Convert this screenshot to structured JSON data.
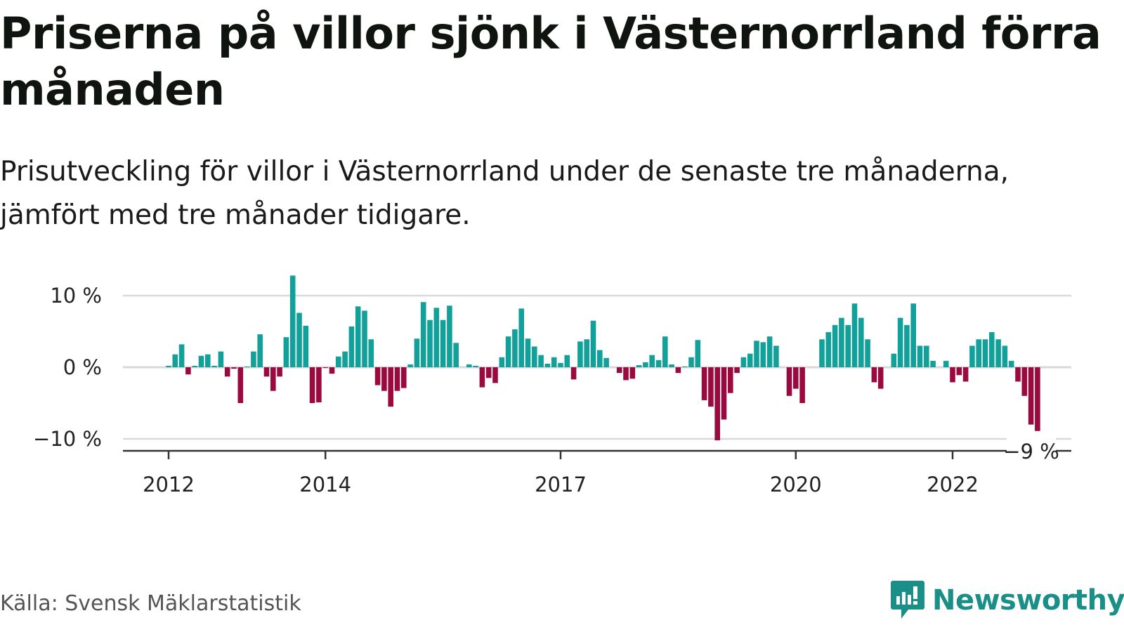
{
  "title": "Priserna på villor sjönk i Västernorrland förra månaden",
  "subtitle": "Prisutveckling för villor i Västernorrland under de senaste tre månaderna, jämfört med tre månader tidigare.",
  "source": "Källa: Svensk Mäklarstatistik",
  "brand": "Newsworthy",
  "colors": {
    "positive": "#12a19a",
    "negative": "#9b0a3f",
    "brand": "#1a8f87",
    "grid": "#d9d9d9",
    "axis": "#333333"
  },
  "chart_data": {
    "type": "bar",
    "unit": "%",
    "ylim": [
      -12,
      13.5
    ],
    "y_ticks": [
      {
        "value": 10,
        "label": "10 %"
      },
      {
        "value": 0,
        "label": "0 %"
      },
      {
        "value": -10,
        "label": "−10 %"
      }
    ],
    "x_ticks": [
      {
        "index": 0,
        "label": "2012"
      },
      {
        "index": 24,
        "label": "2014"
      },
      {
        "index": 60,
        "label": "2017"
      },
      {
        "index": 96,
        "label": "2020"
      },
      {
        "index": 120,
        "label": "2022"
      }
    ],
    "grid": true,
    "start": "2012-01",
    "last_label": "−9 %",
    "values": [
      0.2,
      1.8,
      3.2,
      -1.0,
      0.2,
      1.6,
      1.8,
      0.2,
      2.2,
      -1.3,
      -0.2,
      -5.0,
      0.1,
      2.2,
      4.6,
      -1.3,
      -3.3,
      -1.3,
      4.2,
      12.8,
      7.6,
      5.8,
      -5.0,
      -4.9,
      -0.1,
      -0.9,
      1.5,
      2.2,
      5.7,
      8.5,
      7.9,
      3.9,
      -2.5,
      -3.3,
      -5.5,
      -3.3,
      -2.9,
      0.4,
      4.0,
      9.1,
      6.6,
      8.3,
      6.6,
      8.6,
      3.4,
      0.0,
      0.4,
      0.2,
      -2.8,
      -1.5,
      -2.2,
      1.4,
      4.3,
      5.3,
      8.2,
      4.0,
      2.9,
      1.7,
      0.5,
      1.4,
      0.6,
      1.7,
      -1.7,
      3.6,
      3.9,
      6.5,
      2.4,
      1.3,
      0.0,
      -0.8,
      -1.8,
      -1.6,
      0.3,
      0.7,
      1.7,
      1.0,
      4.3,
      0.4,
      -0.8,
      0.1,
      1.4,
      3.8,
      -4.6,
      -5.5,
      -10.2,
      -7.3,
      -3.6,
      -0.8,
      1.4,
      1.9,
      3.7,
      3.5,
      4.3,
      3.0,
      0.0,
      -4.0,
      -3.0,
      -5.0,
      0.0,
      0.0,
      3.9,
      4.9,
      5.9,
      6.9,
      5.9,
      8.9,
      6.9,
      3.9,
      -2.1,
      -3.0,
      0.0,
      1.9,
      6.9,
      5.9,
      8.9,
      3.0,
      3.0,
      0.9,
      0.0,
      0.9,
      -2.1,
      -1.1,
      -2.0,
      3.0,
      3.9,
      3.9,
      4.9,
      3.9,
      3.0,
      0.9,
      -2.0,
      -4.0,
      -8.0,
      -8.9
    ]
  }
}
